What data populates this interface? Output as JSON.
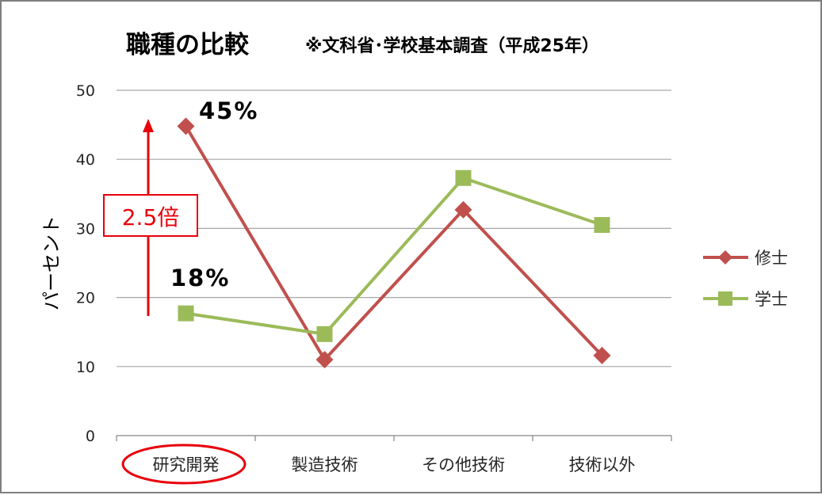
{
  "chart_data": {
    "type": "line",
    "title": "職種の比較",
    "subtitle": "※文科省･学校基本調査（平成25年）",
    "ylabel": "パーセント",
    "xlabel": "",
    "ylim": [
      0,
      50
    ],
    "yticks": [
      0,
      10,
      20,
      30,
      40,
      50
    ],
    "grid": true,
    "legend_position": "right",
    "categories": [
      "研究開発",
      "製造技術",
      "その他技術",
      "技術以外"
    ],
    "series": [
      {
        "name": "修士",
        "values": [
          44.8,
          11.0,
          32.7,
          11.6
        ],
        "color": "#c0504d",
        "marker": "diamond"
      },
      {
        "name": "学士",
        "values": [
          17.7,
          14.7,
          37.3,
          30.5
        ],
        "color": "#9bbb59",
        "marker": "square"
      }
    ],
    "annotations": {
      "master_label": "45%",
      "bachelor_label": "18%",
      "ratio_label": "2.5倍",
      "ratio_color": "#e8000b",
      "highlighted_category": "研究開発"
    }
  }
}
